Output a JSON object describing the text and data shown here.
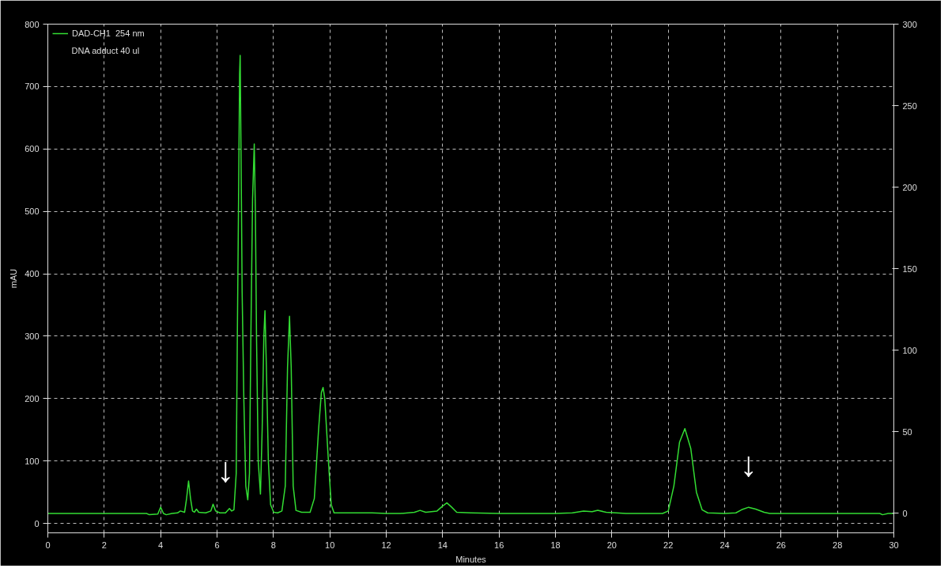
{
  "chart_data": {
    "type": "line",
    "xlabel": "Minutes",
    "ylabel": "mAU",
    "xlim": [
      0,
      30
    ],
    "xticks": [
      0,
      2,
      4,
      6,
      8,
      10,
      12,
      14,
      16,
      18,
      20,
      22,
      24,
      26,
      28,
      30
    ],
    "ylim": [
      -15,
      800
    ],
    "yticks": [
      0,
      100,
      200,
      300,
      400,
      500,
      600,
      700,
      800
    ],
    "y2lim": [
      -12,
      300
    ],
    "y2ticks": [
      0,
      50,
      100,
      150,
      200,
      250,
      300
    ],
    "grid": true,
    "legend": "top left",
    "line_style": "solid",
    "annotations": [
      "DNA adduct 40 ul",
      {
        "text": "↓",
        "x": 6.3,
        "y": 17
      },
      {
        "text": "↓",
        "x": 24.85,
        "y": 26
      }
    ],
    "series": [
      {
        "name": "DAD-CH1  254 nm",
        "color": "#33dd33",
        "x": [
          0,
          3.5,
          3.6,
          3.9,
          4.0,
          4.1,
          4.2,
          4.4,
          4.6,
          4.7,
          4.85,
          4.92,
          4.99,
          5.06,
          5.13,
          5.2,
          5.27,
          5.35,
          5.6,
          5.78,
          5.86,
          5.95,
          6.1,
          6.3,
          6.44,
          6.52,
          6.6,
          6.68,
          6.72,
          6.76,
          6.8,
          6.82,
          6.85,
          6.89,
          6.95,
          7.02,
          7.09,
          7.15,
          7.2,
          7.26,
          7.32,
          7.36,
          7.4,
          7.46,
          7.54,
          7.6,
          7.66,
          7.7,
          7.75,
          7.82,
          7.9,
          8.01,
          8.15,
          8.3,
          8.42,
          8.5,
          8.57,
          8.63,
          8.7,
          8.8,
          9.0,
          9.3,
          9.45,
          9.6,
          9.7,
          9.76,
          9.82,
          9.95,
          10.05,
          10.15,
          11,
          11.5,
          12,
          12.5,
          13.0,
          13.2,
          13.4,
          13.8,
          14.0,
          14.15,
          14.3,
          14.5,
          15,
          16,
          17,
          18,
          18.6,
          19.0,
          19.3,
          19.5,
          19.8,
          20.5,
          21,
          21.8,
          22.0,
          22.2,
          22.4,
          22.59,
          22.8,
          23.0,
          23.2,
          23.4,
          24,
          24.4,
          24.6,
          24.85,
          25.1,
          25.4,
          25.6,
          26.5,
          28,
          29.5,
          29.6,
          29.8,
          30
        ],
        "values": [
          16,
          16,
          14,
          15,
          26,
          16,
          14,
          16,
          17,
          20,
          18,
          40,
          68,
          40,
          20,
          18,
          23,
          18,
          17,
          20,
          31,
          20,
          17,
          17,
          24,
          20,
          22,
          80,
          300,
          500,
          720,
          750,
          600,
          371,
          200,
          60,
          38,
          80,
          300,
          520,
          608,
          500,
          300,
          100,
          47,
          150,
          300,
          341,
          250,
          100,
          30,
          18,
          17,
          20,
          60,
          250,
          332,
          250,
          60,
          21,
          18,
          18,
          40,
          150,
          210,
          218,
          200,
          100,
          30,
          17,
          17,
          17,
          16,
          16,
          18,
          21,
          18,
          20,
          28,
          33,
          27,
          18,
          17,
          16,
          16,
          16,
          17,
          20,
          19,
          21,
          18,
          16,
          16,
          16,
          20,
          60,
          130,
          152,
          120,
          50,
          22,
          17,
          16,
          17,
          22,
          26,
          23,
          18,
          16,
          16,
          16,
          16,
          14,
          16,
          16
        ]
      }
    ]
  }
}
